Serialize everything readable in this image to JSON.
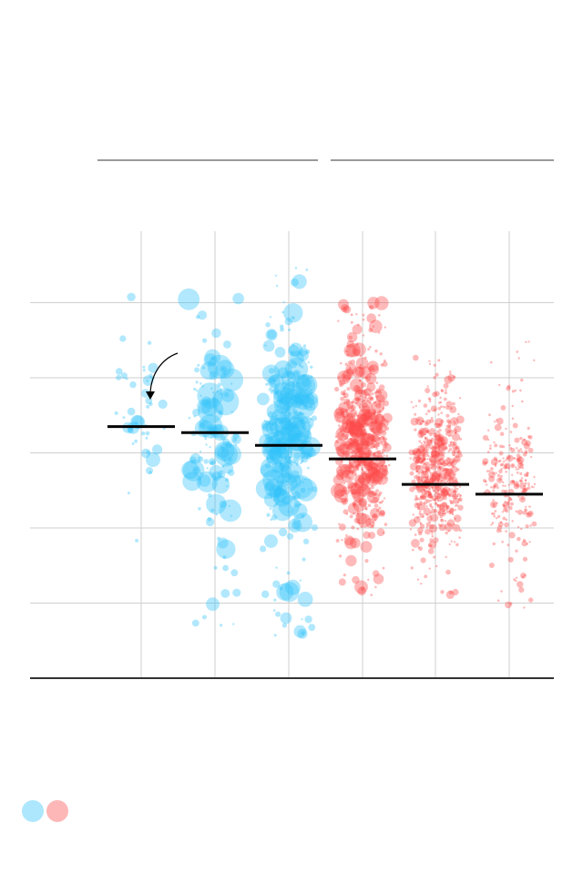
{
  "colors": {
    "blue": "#31c2fb",
    "red": "#fd4a4a",
    "median": "#000000",
    "grid": "#cfcfcf",
    "axis": "#333333",
    "header_rule": "#9a9a9a"
  },
  "legend": [
    {
      "icon": "blue-dot",
      "color": "#31c2fb"
    },
    {
      "icon": "red-dot",
      "color": "#fd4a4a"
    }
  ],
  "chart_data": {
    "type": "scatter",
    "title": "",
    "xlabel": "",
    "ylabel": "",
    "grid": true,
    "ylim": [
      0,
      6
    ],
    "gridlines_y": [
      1,
      2,
      3,
      4,
      5
    ],
    "groups": [
      {
        "header": "",
        "columns": [
          0,
          1,
          2
        ]
      },
      {
        "header": "",
        "columns": [
          3,
          4,
          5
        ]
      }
    ],
    "categories": [
      "",
      "",
      "",
      "",
      "",
      ""
    ],
    "series": [
      {
        "color_key": "blue",
        "median": 3.35,
        "spread": [
          1.7,
          5.8
        ],
        "core": [
          2.5,
          4.5
        ],
        "count": 45,
        "size_range": [
          1.5,
          9
        ]
      },
      {
        "color_key": "blue",
        "median": 3.27,
        "spread": [
          0.65,
          5.2
        ],
        "core": [
          2.1,
          4.3
        ],
        "count": 140,
        "size_range": [
          1.2,
          15
        ]
      },
      {
        "color_key": "blue",
        "median": 3.1,
        "spread": [
          0.55,
          5.5
        ],
        "core": [
          2.3,
          4.3
        ],
        "count": 380,
        "size_range": [
          1.2,
          13
        ]
      },
      {
        "color_key": "red",
        "median": 2.92,
        "spread": [
          1.1,
          5.0
        ],
        "core": [
          2.1,
          4.2
        ],
        "count": 650,
        "size_range": [
          1.2,
          8
        ]
      },
      {
        "color_key": "red",
        "median": 2.58,
        "spread": [
          1.1,
          4.3
        ],
        "core": [
          1.9,
          3.6
        ],
        "count": 600,
        "size_range": [
          1.2,
          5
        ]
      },
      {
        "color_key": "red",
        "median": 2.45,
        "spread": [
          0.9,
          4.5
        ],
        "core": [
          1.9,
          3.5
        ],
        "count": 260,
        "size_range": [
          1.2,
          4
        ]
      }
    ],
    "annotation": {
      "text": "",
      "points_to": "median-col-0"
    }
  }
}
